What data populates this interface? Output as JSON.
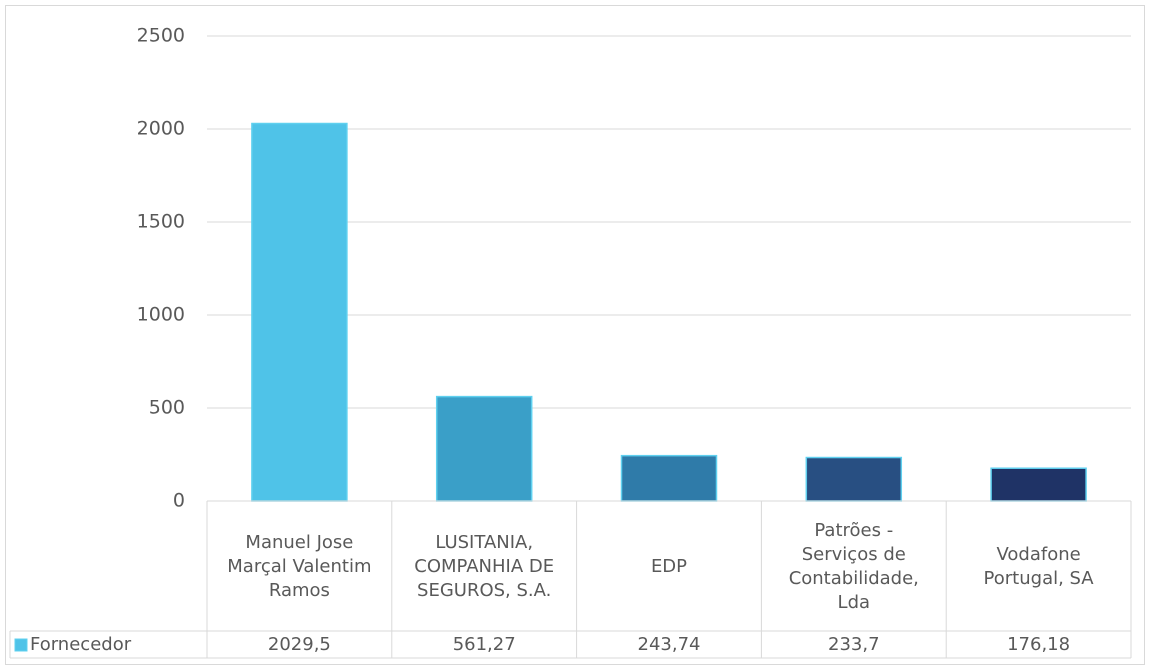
{
  "chart_data": {
    "type": "bar",
    "categories": [
      "Manuel Jose Marçal Valentim Ramos",
      "LUSITANIA, COMPANHIA DE SEGUROS, S.A.",
      "EDP",
      "Patrões - Serviços de Contabilidade, Lda",
      "Vodafone Portugal, SA"
    ],
    "series": [
      {
        "name": "Fornecedor",
        "color": "#4fc3e8",
        "colors": [
          "#4fc3e8",
          "#3a9fc8",
          "#2f7ba9",
          "#284f82",
          "#1f3366"
        ],
        "values": [
          2029.5,
          561.27,
          243.74,
          233.7,
          176.18
        ],
        "value_labels": [
          "2029,5",
          "561,27",
          "243,74",
          "233,7",
          "176,18"
        ]
      }
    ],
    "ylim": [
      0,
      2500
    ],
    "yticks": [
      0,
      500,
      1000,
      1500,
      2000,
      2500
    ],
    "grid": true,
    "data_table": true
  }
}
